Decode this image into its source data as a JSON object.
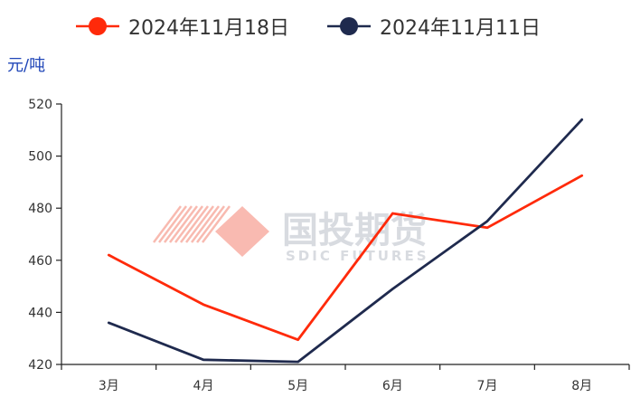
{
  "chart_data": {
    "type": "line",
    "title": "",
    "xlabel": "",
    "ylabel": "元/吨",
    "categories": [
      "3月",
      "4月",
      "5月",
      "6月",
      "7月",
      "8月"
    ],
    "ylim": [
      420,
      520
    ],
    "yticks": [
      420,
      440,
      460,
      480,
      500,
      520
    ],
    "grid": false,
    "legend_position": "top",
    "series": [
      {
        "name": "2024年11月18日",
        "color": "#ff2a0a",
        "values": [
          462,
          443,
          429.5,
          478,
          472.5,
          492.5
        ]
      },
      {
        "name": "2024年11月11日",
        "color": "#1f2a4e",
        "values": [
          436,
          421.8,
          421,
          449,
          475,
          514
        ]
      }
    ]
  },
  "watermark": {
    "cn_text": "国投期货",
    "en_text": "SDIC FUTURES",
    "color": "#f8b3a8"
  },
  "colors": {
    "ylabel": "#2046b8",
    "axis": "#222222",
    "tick_text": "#333333"
  }
}
